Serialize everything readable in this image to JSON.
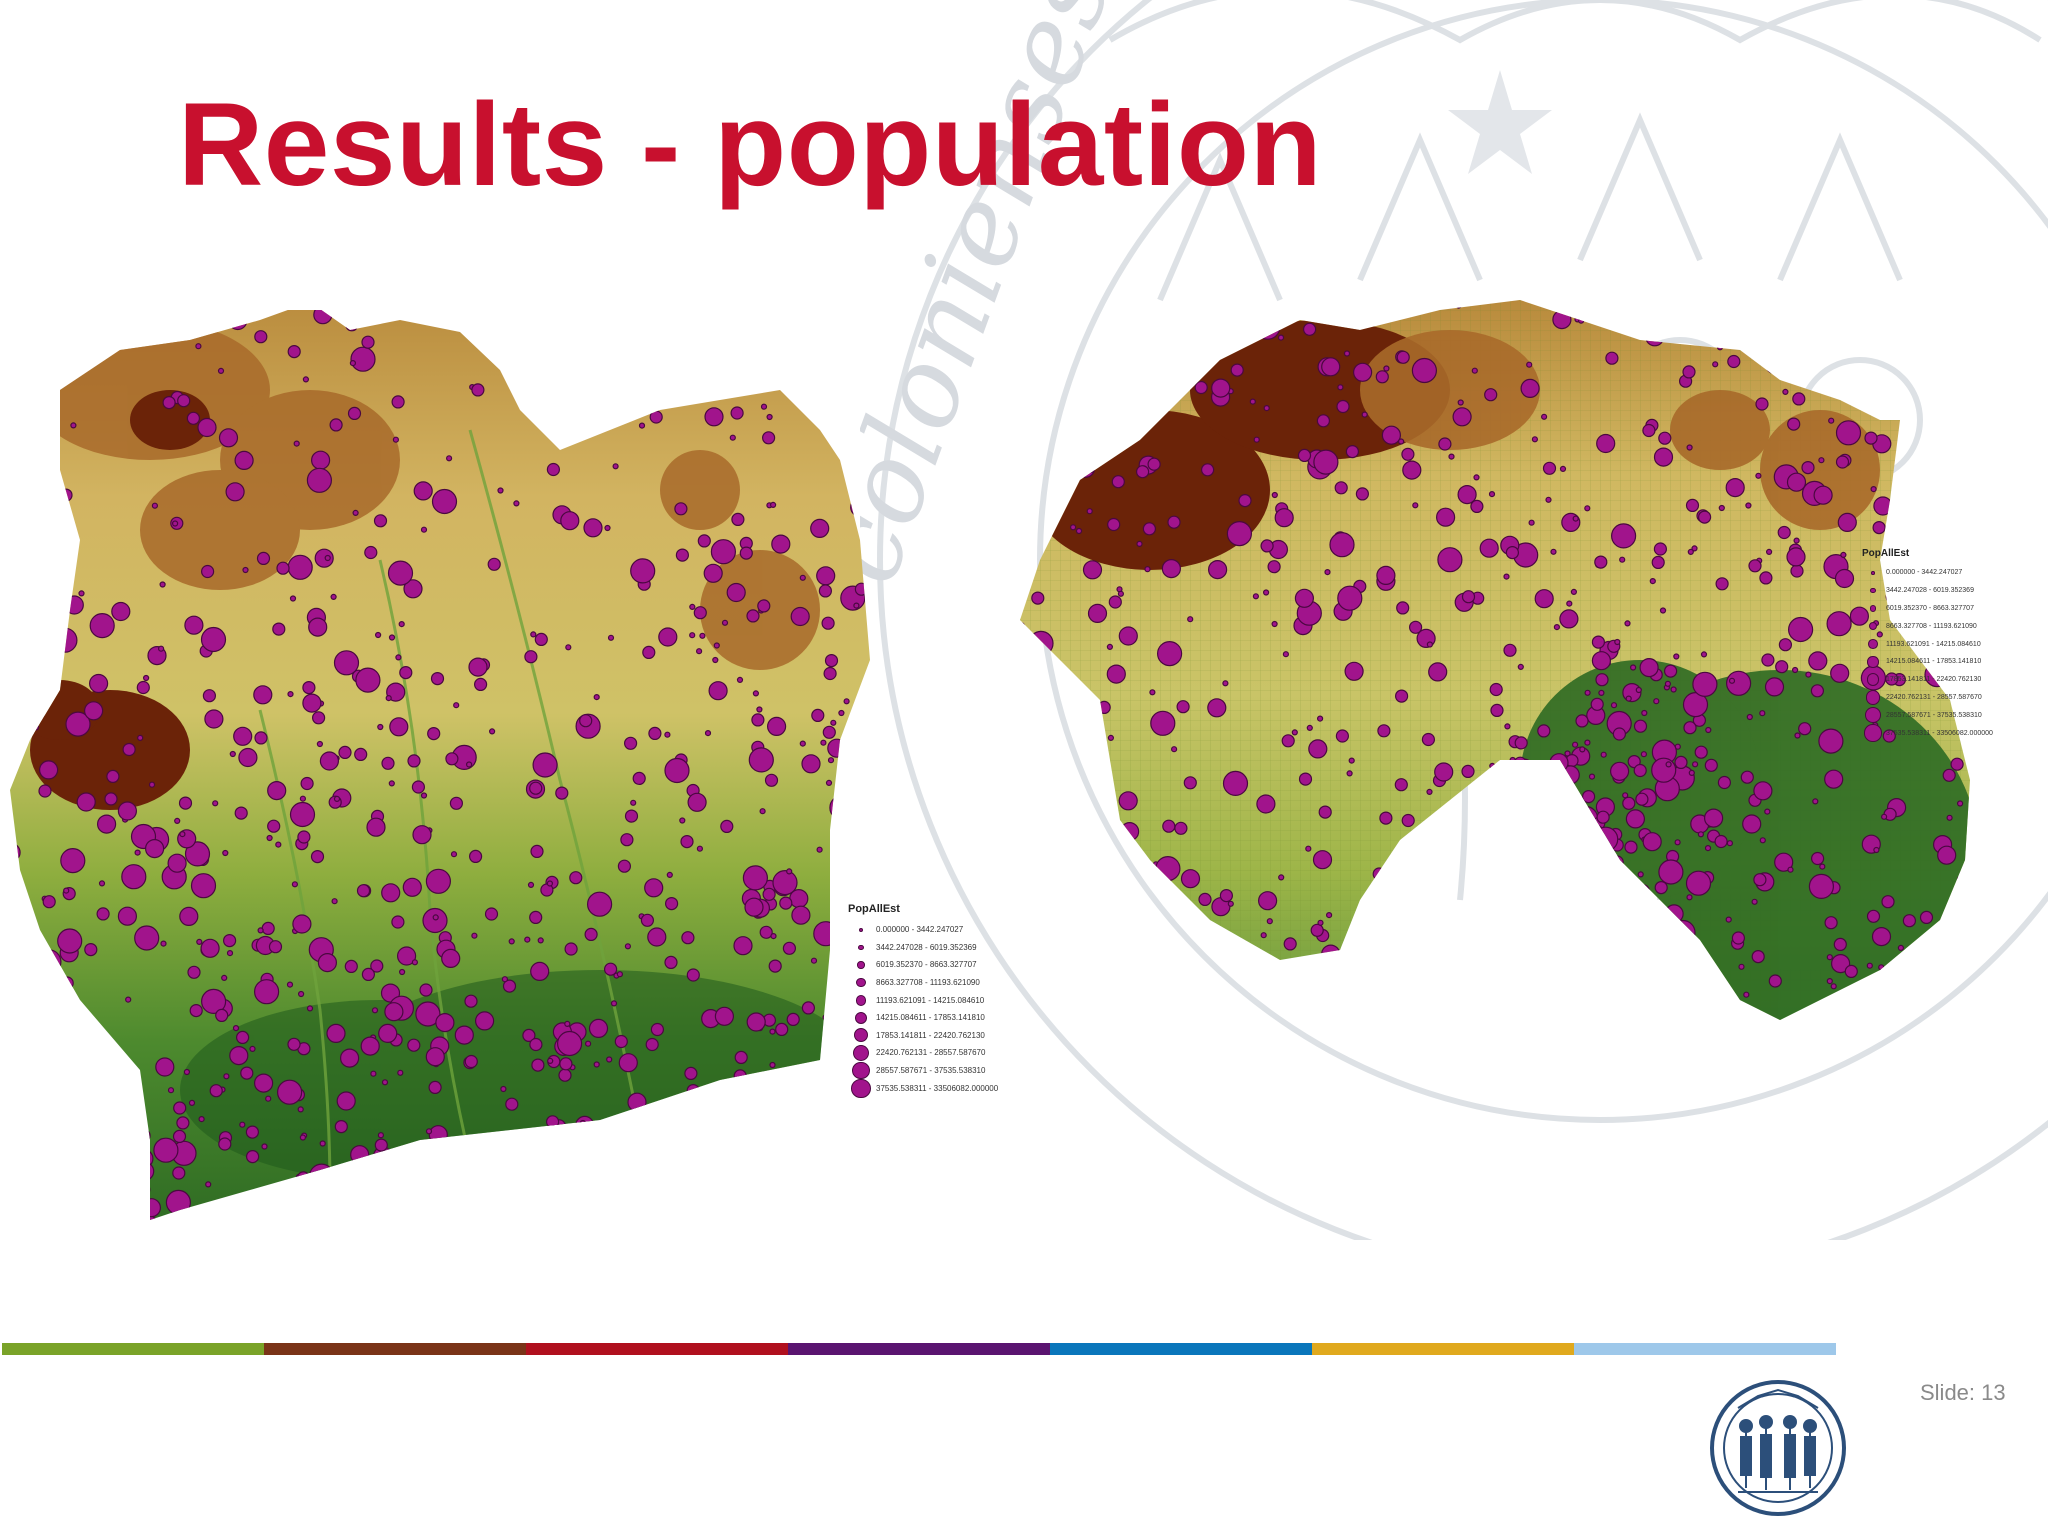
{
  "slide": {
    "title": "Results - population",
    "slide_number_label": "Slide: 13",
    "seal_lettering": "colonienses"
  },
  "legend_left": {
    "title": "PopAllEst",
    "items": [
      "0.000000 - 3442.247027",
      "3442.247028 - 6019.352369",
      "6019.352370 - 8663.327707",
      "8663.327708 - 11193.621090",
      "11193.621091 - 14215.084610",
      "14215.084611 - 17853.141810",
      "17853.141811 - 22420.762130",
      "22420.762131 - 28557.587670",
      "28557.587671 - 37535.538310",
      "37535.538311 - 33506082.000000"
    ]
  },
  "legend_right": {
    "title": "PopAllEst",
    "items": [
      "0.000000 - 3442.247027",
      "3442.247028 - 6019.352369",
      "6019.352370 - 8663.327707",
      "8663.327708 - 11193.621090",
      "11193.621091 - 14215.084610",
      "14215.084611 - 17853.141810",
      "17853.141811 - 22420.762130",
      "22420.762131 - 28557.587670",
      "28557.587671 - 37535.538310",
      "37535.538311 - 33506082.000000"
    ]
  },
  "colors": {
    "title": "#c8102e",
    "settlement_fill": "#a1148c",
    "settlement_stroke": "#4a0840",
    "lowland": "#2e6b23",
    "plain": "#7fa53a",
    "upland": "#d4c266",
    "highland": "#a86a2a",
    "peak": "#6b2308",
    "colorbar": [
      "#7aa329",
      "#7a3418",
      "#b0101e",
      "#5a1470",
      "#0a76bb",
      "#e0a91e",
      "#9ec8ea"
    ]
  },
  "icons": {
    "watermark": "university-seal-watermark",
    "logo": "university-seal-logo"
  }
}
